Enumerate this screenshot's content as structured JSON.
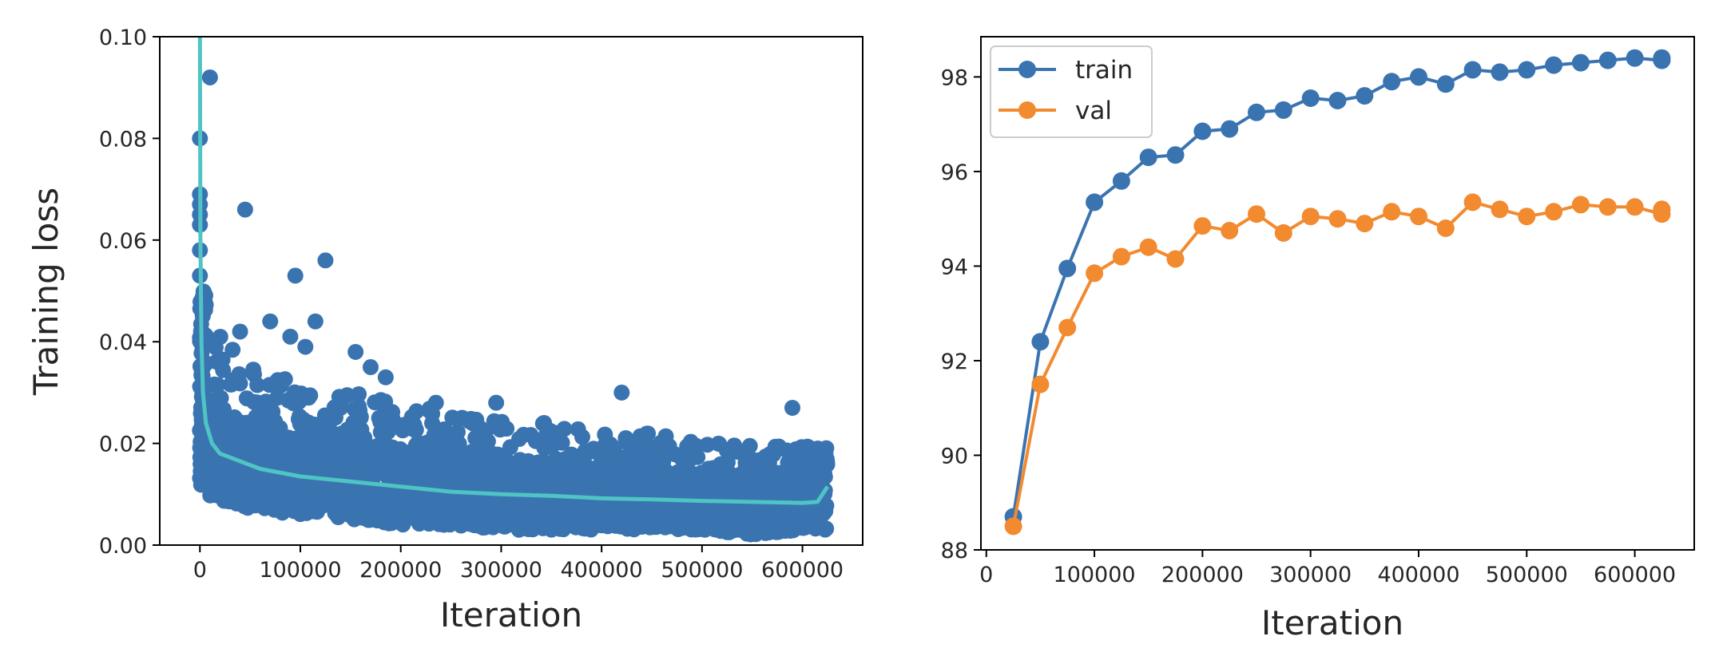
{
  "chart_data": [
    {
      "type": "scatter",
      "title": "",
      "xlabel": "Iteration",
      "ylabel": "Training loss",
      "xlim": [
        -40000,
        660000
      ],
      "ylim": [
        0,
        0.1
      ],
      "x_ticks": [
        0,
        100000,
        200000,
        300000,
        400000,
        500000,
        600000
      ],
      "x_tick_labels": [
        "0",
        "100000",
        "200000",
        "300000",
        "400000",
        "500000",
        "600000"
      ],
      "y_ticks": [
        0,
        0.02,
        0.04,
        0.06,
        0.08,
        0.1
      ],
      "y_tick_labels": [
        "0.00",
        "0.02",
        "0.04",
        "0.06",
        "0.08",
        "0.10"
      ],
      "grid": false,
      "series": [
        {
          "kind": "scatter",
          "color": "#3a74b0",
          "band": {
            "x": [
              0,
              50000,
              100000,
              150000,
              200000,
              250000,
              300000,
              350000,
              400000,
              450000,
              500000,
              550000,
              600000,
              625000
            ],
            "low": [
              0.01,
              0.007,
              0.006,
              0.005,
              0.004,
              0.004,
              0.003,
              0.003,
              0.003,
              0.003,
              0.003,
              0.002,
              0.003,
              0.003
            ],
            "high": [
              0.048,
              0.035,
              0.032,
              0.03,
              0.028,
              0.026,
              0.025,
              0.024,
              0.022,
              0.022,
              0.02,
              0.02,
              0.02,
              0.019
            ]
          },
          "outliers": [
            {
              "x": 0,
              "y": 0.069
            },
            {
              "x": 0,
              "y": 0.067
            },
            {
              "x": 0,
              "y": 0.065
            },
            {
              "x": 0,
              "y": 0.063
            },
            {
              "x": 0,
              "y": 0.058
            },
            {
              "x": 0,
              "y": 0.053
            },
            {
              "x": 0,
              "y": 0.08
            },
            {
              "x": 10000,
              "y": 0.092
            },
            {
              "x": 45000,
              "y": 0.066
            },
            {
              "x": 95000,
              "y": 0.053
            },
            {
              "x": 125000,
              "y": 0.056
            },
            {
              "x": 115000,
              "y": 0.044
            },
            {
              "x": 70000,
              "y": 0.044
            },
            {
              "x": 90000,
              "y": 0.041
            },
            {
              "x": 105000,
              "y": 0.039
            },
            {
              "x": 155000,
              "y": 0.038
            },
            {
              "x": 170000,
              "y": 0.035
            },
            {
              "x": 185000,
              "y": 0.033
            },
            {
              "x": 40000,
              "y": 0.042
            },
            {
              "x": 235000,
              "y": 0.028
            },
            {
              "x": 295000,
              "y": 0.028
            },
            {
              "x": 420000,
              "y": 0.03
            },
            {
              "x": 590000,
              "y": 0.027
            }
          ]
        },
        {
          "kind": "line",
          "color": "#4fc4c4",
          "x": [
            0,
            500,
            1500,
            3000,
            6000,
            12000,
            20000,
            40000,
            60000,
            100000,
            150000,
            200000,
            250000,
            300000,
            350000,
            400000,
            450000,
            500000,
            550000,
            600000,
            615000,
            625000
          ],
          "y": [
            0.1,
            0.06,
            0.04,
            0.03,
            0.024,
            0.02,
            0.018,
            0.0165,
            0.015,
            0.0135,
            0.0125,
            0.0115,
            0.0105,
            0.01,
            0.0097,
            0.0092,
            0.009,
            0.0087,
            0.0085,
            0.0083,
            0.0085,
            0.0115
          ]
        }
      ]
    },
    {
      "type": "line",
      "title": "",
      "xlabel": "Iteration",
      "ylabel": "",
      "xlim": [
        -5000,
        655000
      ],
      "ylim": [
        88,
        98.85
      ],
      "x_ticks": [
        0,
        100000,
        200000,
        300000,
        400000,
        500000,
        600000
      ],
      "x_tick_labels": [
        "0",
        "100000",
        "200000",
        "300000",
        "400000",
        "500000",
        "600000"
      ],
      "y_ticks": [
        88,
        90,
        92,
        94,
        96,
        98
      ],
      "y_tick_labels": [
        "88",
        "90",
        "92",
        "94",
        "96",
        "98"
      ],
      "grid": false,
      "legend_position": "top-left",
      "x": [
        25000,
        50000,
        75000,
        100000,
        125000,
        150000,
        175000,
        200000,
        225000,
        250000,
        275000,
        300000,
        325000,
        350000,
        375000,
        400000,
        425000,
        450000,
        475000,
        500000,
        525000,
        550000,
        575000,
        600000,
        625000,
        625000
      ],
      "series": [
        {
          "name": "train",
          "color": "#3a74b0",
          "values": [
            88.7,
            92.4,
            93.95,
            95.35,
            95.8,
            96.3,
            96.35,
            96.85,
            96.9,
            97.25,
            97.3,
            97.55,
            97.5,
            97.6,
            97.9,
            98.0,
            97.85,
            98.15,
            98.1,
            98.15,
            98.25,
            98.3,
            98.35,
            98.4,
            98.35,
            98.4
          ]
        },
        {
          "name": "val",
          "color": "#f28a30",
          "values": [
            88.5,
            91.5,
            92.7,
            93.85,
            94.2,
            94.4,
            94.15,
            94.85,
            94.75,
            95.1,
            94.7,
            95.05,
            95.0,
            94.9,
            95.15,
            95.05,
            94.8,
            95.35,
            95.2,
            95.05,
            95.15,
            95.3,
            95.25,
            95.25,
            95.1,
            95.2
          ]
        }
      ]
    }
  ]
}
